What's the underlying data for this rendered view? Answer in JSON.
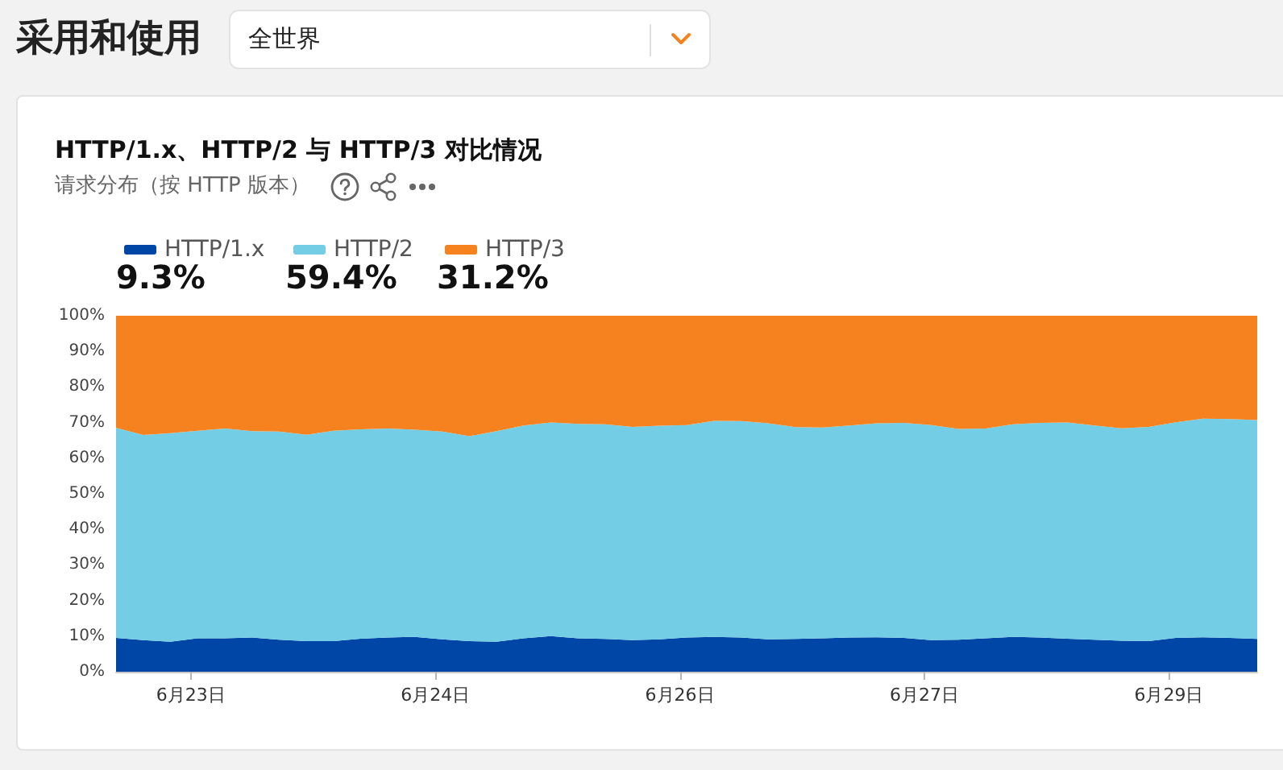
{
  "chart_data": {
    "type": "area",
    "title": "HTTP/1.x、HTTP/2 与 HTTP/3 对比情况",
    "subtitle": "请求分布（按 HTTP 版本）",
    "annotations": [
      "采用和使用",
      "全世界",
      "9.3%",
      "59.4%",
      "31.2%"
    ],
    "stacked": true,
    "legend": "top left",
    "grid": false,
    "x": [
      "--06-22T13:00",
      "--06-22T17:00",
      "--06-22T21:00",
      "--06-23T01:00",
      "--06-23T05:00",
      "--06-23T09:00",
      "--06-23T13:00",
      "--06-23T17:00",
      "--06-23T21:00",
      "--06-24T01:00",
      "--06-24T05:00",
      "--06-24T09:00",
      "--06-24T13:00",
      "--06-24T17:00",
      "--06-24T21:00",
      "--06-25T01:00",
      "--06-25T05:00",
      "--06-25T09:00",
      "--06-25T13:00",
      "--06-25T17:00",
      "--06-25T21:00",
      "--06-26T01:00",
      "--06-26T05:00",
      "--06-26T09:00",
      "--06-26T13:00",
      "--06-26T17:00",
      "--06-26T21:00",
      "--06-27T01:00",
      "--06-27T05:00",
      "--06-27T09:00",
      "--06-27T13:00",
      "--06-27T17:00",
      "--06-27T21:00",
      "--06-28T01:00",
      "--06-28T05:00",
      "--06-28T09:00",
      "--06-28T13:00",
      "--06-28T17:00",
      "--06-28T21:00",
      "--06-29T01:00",
      "--06-29T05:00",
      "--06-29T09:00",
      "--06-29T13:00"
    ],
    "series": [
      {
        "name": "HTTP/1.x",
        "color": "#0046a6",
        "values": [
          9.5,
          8.9,
          8.4,
          9.4,
          9.4,
          9.6,
          9.0,
          8.6,
          8.6,
          9.3,
          9.6,
          9.8,
          9.1,
          8.6,
          8.4,
          9.4,
          10.0,
          9.4,
          9.2,
          8.9,
          9.1,
          9.6,
          9.8,
          9.6,
          9.1,
          9.2,
          9.4,
          9.6,
          9.7,
          9.5,
          8.9,
          9.0,
          9.4,
          9.8,
          9.6,
          9.3,
          9.0,
          8.7,
          8.6,
          9.5,
          9.7,
          9.5,
          9.2
        ]
      },
      {
        "name": "HTTP/2",
        "color": "#73cde5",
        "values": [
          59.0,
          57.6,
          58.6,
          58.3,
          58.9,
          58.0,
          58.5,
          58.0,
          59.1,
          58.8,
          58.7,
          58.2,
          58.4,
          57.6,
          59.2,
          59.8,
          60.0,
          60.2,
          60.3,
          59.9,
          60.0,
          59.7,
          60.7,
          60.8,
          60.7,
          59.5,
          59.2,
          59.6,
          60.1,
          60.4,
          60.4,
          59.2,
          58.9,
          59.7,
          60.3,
          60.7,
          60.2,
          59.7,
          60.2,
          60.6,
          61.4,
          61.5,
          61.5
        ]
      },
      {
        "name": "HTTP/3",
        "color": "#f6821f",
        "values": [
          31.5,
          33.5,
          33.0,
          32.3,
          31.7,
          32.4,
          32.5,
          33.4,
          32.3,
          31.9,
          31.7,
          32.0,
          32.5,
          33.8,
          32.4,
          30.8,
          30.0,
          30.4,
          30.5,
          31.2,
          30.9,
          30.7,
          29.5,
          29.6,
          30.2,
          31.3,
          31.4,
          30.8,
          30.2,
          30.1,
          30.7,
          31.8,
          31.7,
          30.5,
          30.1,
          30.0,
          30.8,
          31.6,
          31.2,
          29.9,
          28.9,
          29.0,
          29.3
        ]
      }
    ],
    "xlim": [
      "--06-22T13:00",
      "--06-29T13:00"
    ],
    "xticks": [
      {
        "value": "--06-23T00:00",
        "label": "6月23日"
      },
      {
        "value": "--06-24T12:00",
        "label": "6月24日"
      },
      {
        "value": "--06-26T00:00",
        "label": "6月26日"
      },
      {
        "value": "--06-27T12:00",
        "label": "6月27日"
      },
      {
        "value": "--06-29T00:00",
        "label": "6月29日"
      }
    ],
    "ylim": [
      0,
      100
    ],
    "yticks": [
      {
        "value": 0,
        "label": "0%"
      },
      {
        "value": 10,
        "label": "10%"
      },
      {
        "value": 20,
        "label": "20%"
      },
      {
        "value": 30,
        "label": "30%"
      },
      {
        "value": 40,
        "label": "40%"
      },
      {
        "value": 50,
        "label": "50%"
      },
      {
        "value": 60,
        "label": "60%"
      },
      {
        "value": 70,
        "label": "70%"
      },
      {
        "value": 80,
        "label": "80%"
      },
      {
        "value": 90,
        "label": "90%"
      },
      {
        "value": 100,
        "label": "100%"
      }
    ]
  }
}
